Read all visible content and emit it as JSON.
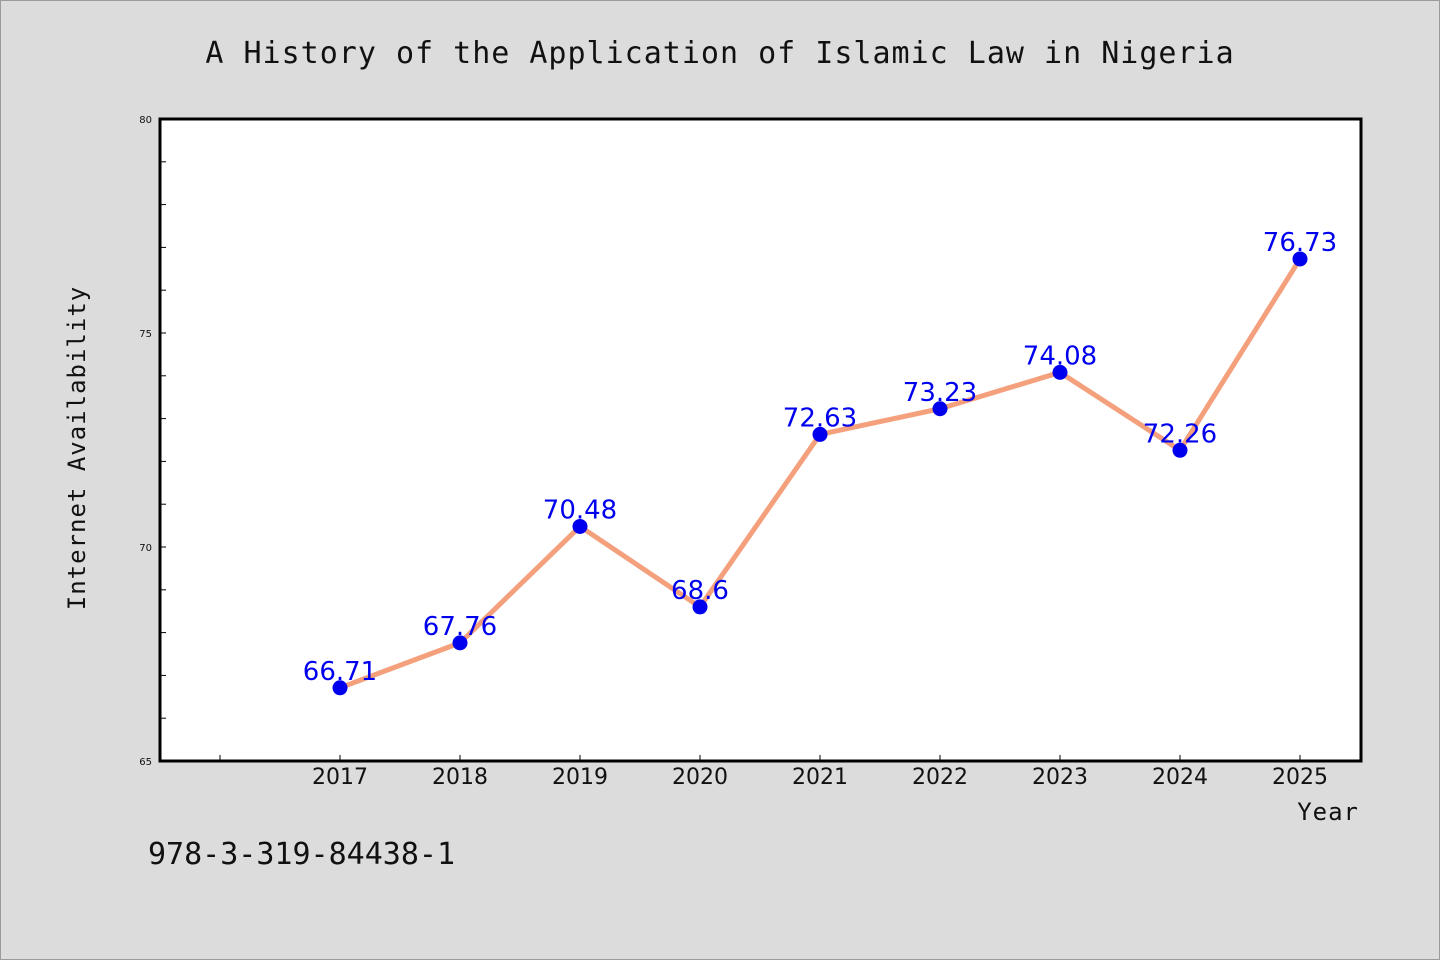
{
  "chart_data": {
    "type": "line",
    "title": "A History of the Application of Islamic Law in Nigeria",
    "xlabel": "Year",
    "ylabel": "Internet Availability",
    "categories": [
      "2017",
      "2018",
      "2019",
      "2020",
      "2021",
      "2022",
      "2023",
      "2024",
      "2025"
    ],
    "values": [
      66.71,
      67.76,
      70.48,
      68.6,
      72.63,
      73.23,
      74.08,
      72.26,
      76.73
    ],
    "data_labels": [
      "66.71",
      "67.76",
      "70.48",
      "68.6",
      "72.63",
      "73.23",
      "74.08",
      "72.26",
      "76.73"
    ],
    "ylim": [
      65,
      80
    ],
    "yticks": [
      65,
      70,
      75,
      80
    ],
    "grid": false,
    "legend": "none",
    "colors": {
      "line": "#f4a07c",
      "marker": "#0000ee",
      "label": "#0000ee",
      "background": "#dcdcdc",
      "plot": "#ffffff"
    }
  },
  "footer": {
    "isbn": "978-3-319-84438-1"
  }
}
